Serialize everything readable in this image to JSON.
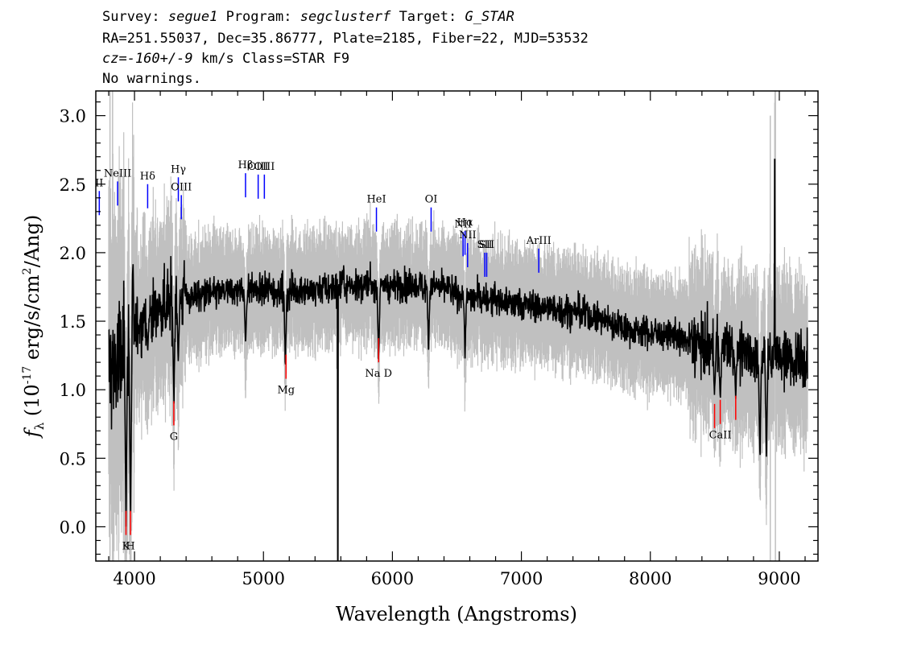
{
  "header": {
    "line1": {
      "survey_key": "Survey:",
      "survey": "segue1",
      "program_key": "Program:",
      "program": "segclusterf",
      "target_key": "Target:",
      "target": "G_STAR"
    },
    "line2": "RA=251.55037, Dec=35.86777, Plate=2185, Fiber=22, MJD=53532",
    "line3": {
      "cz": "cz=-160+/-9",
      "rest": "km/s Class=STAR F9"
    },
    "line4": "No warnings."
  },
  "chart_data": {
    "type": "line",
    "title": "",
    "xlabel": "Wavelength (Angstroms)",
    "ylabel_prefix": "f",
    "ylabel_sub": "λ",
    "ylabel_mid": " (10",
    "ylabel_exp": "-17",
    "ylabel_units": " erg/s/cm",
    "ylabel_units_exp": "2",
    "ylabel_end": "/Ang)",
    "xlim": [
      3700,
      9300
    ],
    "ylim": [
      -0.25,
      3.18
    ],
    "x_major_ticks": [
      4000,
      5000,
      6000,
      7000,
      8000,
      9000
    ],
    "y_major_ticks": [
      0.0,
      0.5,
      1.0,
      1.5,
      2.0,
      2.5,
      3.0
    ],
    "x_tick_labels": [
      "4000",
      "5000",
      "6000",
      "7000",
      "8000",
      "9000"
    ],
    "y_tick_labels": [
      "0.0",
      "0.5",
      "1.0",
      "1.5",
      "2.0",
      "2.5",
      "3.0"
    ],
    "colors": {
      "flux": "#000000",
      "error": "#c0c0c0",
      "emission": "#0000ff",
      "absorption": "#ff0000"
    },
    "continuum_knots": [
      [
        3800,
        1.15
      ],
      [
        3900,
        1.2
      ],
      [
        4000,
        1.45
      ],
      [
        4100,
        1.55
      ],
      [
        4200,
        1.6
      ],
      [
        4300,
        1.65
      ],
      [
        4400,
        1.68
      ],
      [
        4600,
        1.7
      ],
      [
        4800,
        1.72
      ],
      [
        5000,
        1.72
      ],
      [
        5200,
        1.72
      ],
      [
        5400,
        1.73
      ],
      [
        5600,
        1.75
      ],
      [
        5800,
        1.76
      ],
      [
        6000,
        1.76
      ],
      [
        6200,
        1.76
      ],
      [
        6400,
        1.74
      ],
      [
        6600,
        1.68
      ],
      [
        6800,
        1.65
      ],
      [
        7000,
        1.62
      ],
      [
        7200,
        1.6
      ],
      [
        7400,
        1.57
      ],
      [
        7600,
        1.52
      ],
      [
        7800,
        1.45
      ],
      [
        8000,
        1.42
      ],
      [
        8200,
        1.38
      ],
      [
        8400,
        1.32
      ],
      [
        8600,
        1.3
      ],
      [
        8800,
        1.25
      ],
      [
        9000,
        1.25
      ],
      [
        9220,
        1.18
      ]
    ],
    "flux_dips": [
      [
        3934,
        0.0
      ],
      [
        3969,
        0.05
      ],
      [
        4102,
        1.25
      ],
      [
        4305,
        0.9
      ],
      [
        4340,
        1.2
      ],
      [
        4861,
        1.3
      ],
      [
        5170,
        1.15
      ],
      [
        5893,
        1.2
      ],
      [
        6280,
        1.3
      ],
      [
        6563,
        1.25
      ],
      [
        8498,
        0.95
      ],
      [
        8542,
        0.9
      ],
      [
        8662,
        0.95
      ],
      [
        8850,
        0.45
      ],
      [
        8900,
        0.5
      ]
    ],
    "flux_spikes": [
      [
        8965,
        2.68
      ],
      [
        5577,
        -0.25
      ]
    ],
    "emission_lines": [
      {
        "label": "NeIII",
        "wave": 3869,
        "y": 2.52
      },
      {
        "label": "Hδ",
        "wave": 4102,
        "y": 2.5
      },
      {
        "label": "Hγ",
        "wave": 4340,
        "y": 2.55
      },
      {
        "label": "OIII",
        "wave": 4363,
        "y": 2.42
      },
      {
        "label": "Hβ",
        "wave": 4861,
        "y": 2.58
      },
      {
        "label": "OIII",
        "wave": 4959,
        "y": 2.57
      },
      {
        "label": "OIII",
        "wave": 5007,
        "y": 2.57
      },
      {
        "label": "HeI",
        "wave": 5876,
        "y": 2.33
      },
      {
        "label": "OI",
        "wave": 6300,
        "y": 2.33
      },
      {
        "label": "NII",
        "wave": 6548,
        "y": 2.15
      },
      {
        "label": "Hα",
        "wave": 6563,
        "y": 2.16
      },
      {
        "label": "NII",
        "wave": 6583,
        "y": 2.07
      },
      {
        "label": "SII",
        "wave": 6716,
        "y": 2.0
      },
      {
        "label": "SII",
        "wave": 6731,
        "y": 2.0
      },
      {
        "label": "ArIII",
        "wave": 7135,
        "y": 2.03
      },
      {
        "label": "II",
        "wave": 3727,
        "y": 2.45
      }
    ],
    "emission_label_text": {
      "NeIII": "NeIII",
      "Hδ": "Hδ",
      "Hγ": "Hγ",
      "OIII": "OIII",
      "Hβ": "Hβ",
      "HeI": "HeI",
      "OI": "OI",
      "NII": "NII",
      "Hα": "Hα",
      "SII": "SII",
      "ArIII": "ArIII",
      "II": "II"
    },
    "absorption_lines": [
      {
        "label": "K",
        "wave": 3934,
        "y": -0.06
      },
      {
        "label": "H",
        "wave": 3969,
        "y": -0.06
      },
      {
        "label": "G",
        "wave": 4305,
        "y": 0.74
      },
      {
        "label": "Mg",
        "wave": 5175,
        "y": 1.08
      },
      {
        "label": "Na D",
        "wave": 5893,
        "y": 1.2
      },
      {
        "label": "CaII",
        "wave": 8498,
        "y": 0.72
      },
      {
        "label": "CaII",
        "wave": 8542,
        "y": 0.75
      },
      {
        "label": "CaII",
        "wave": 8662,
        "y": 0.78
      }
    ],
    "absorption_label_text": {
      "K": "K",
      "H": "H",
      "G": "G",
      "Mg": "Mg",
      "Na D": "Na D",
      "CaII": "CaII"
    }
  }
}
